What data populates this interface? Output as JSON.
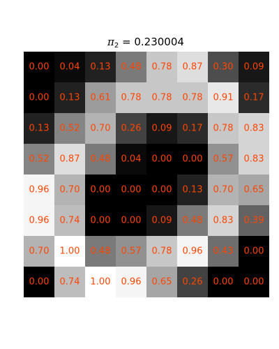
{
  "chart_data": {
    "type": "heatmap",
    "title": {
      "symbol": "π",
      "subscript": "2",
      "rest": " = 0.230004"
    },
    "colormap": "grayscale (0 = black, 1 = white)",
    "grid": false,
    "axes_visible": false,
    "label_color": "#ff4500",
    "vmin": 0.0,
    "vmax": 1.0,
    "rows": [
      [
        0.0,
        0.04,
        0.13,
        0.48,
        0.78,
        0.87,
        0.3,
        0.09
      ],
      [
        0.0,
        0.13,
        0.61,
        0.78,
        0.78,
        0.78,
        0.91,
        0.17
      ],
      [
        0.13,
        0.52,
        0.7,
        0.26,
        0.09,
        0.17,
        0.78,
        0.83
      ],
      [
        0.52,
        0.87,
        0.48,
        0.04,
        0.0,
        0.0,
        0.57,
        0.83
      ],
      [
        0.96,
        0.7,
        0.0,
        0.0,
        0.0,
        0.13,
        0.7,
        0.65
      ],
      [
        0.96,
        0.74,
        0.0,
        0.0,
        0.09,
        0.48,
        0.83,
        0.39
      ],
      [
        0.7,
        1.0,
        0.48,
        0.57,
        0.78,
        0.96,
        0.43,
        0.0
      ],
      [
        0.0,
        0.74,
        1.0,
        0.96,
        0.65,
        0.26,
        0.0,
        0.0
      ]
    ]
  }
}
